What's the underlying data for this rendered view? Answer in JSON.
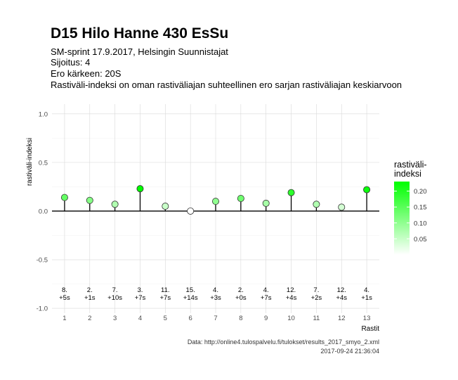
{
  "chart_data": {
    "type": "scatter",
    "title": "D15 Hilo Hanne 430 EsSu",
    "subtitle_lines": [
      "SM-sprint 17.9.2017, Helsingin Suunnistajat",
      "Sijoitus: 4",
      "Ero kärkeen: 20S",
      "Rastiväli-indeksi on oman rastiväliajan suhteellinen ero sarjan rastiväliajan keskiarvoon"
    ],
    "xlabel": "Rastit",
    "ylabel": "rastiväli-indeksi",
    "xlim": [
      0.5,
      13.5
    ],
    "ylim": [
      -1.05,
      1.1
    ],
    "x_ticks": [
      1,
      2,
      3,
      4,
      5,
      6,
      7,
      8,
      9,
      10,
      11,
      12,
      13
    ],
    "y_ticks": [
      -1.0,
      -0.5,
      0.0,
      0.5,
      1.0
    ],
    "y_tick_labels": [
      "-1.0",
      "-0.5",
      "0.0",
      "0.5",
      "1.0"
    ],
    "grid": true,
    "baseline": 0,
    "points": [
      {
        "x": 1,
        "y": 0.14,
        "rank": "8.",
        "diff": "+5s"
      },
      {
        "x": 2,
        "y": 0.11,
        "rank": "2.",
        "diff": "+1s"
      },
      {
        "x": 3,
        "y": 0.07,
        "rank": "7.",
        "diff": "+10s"
      },
      {
        "x": 4,
        "y": 0.23,
        "rank": "3.",
        "diff": "+7s"
      },
      {
        "x": 5,
        "y": 0.05,
        "rank": "11.",
        "diff": "+7s"
      },
      {
        "x": 6,
        "y": 0.0,
        "rank": "15.",
        "diff": "+14s"
      },
      {
        "x": 7,
        "y": 0.1,
        "rank": "4.",
        "diff": "+3s"
      },
      {
        "x": 8,
        "y": 0.13,
        "rank": "2.",
        "diff": "+0s"
      },
      {
        "x": 9,
        "y": 0.08,
        "rank": "4.",
        "diff": "+7s"
      },
      {
        "x": 10,
        "y": 0.19,
        "rank": "12.",
        "diff": "+4s"
      },
      {
        "x": 11,
        "y": 0.07,
        "rank": "7.",
        "diff": "+2s"
      },
      {
        "x": 12,
        "y": 0.04,
        "rank": "12.",
        "diff": "+4s"
      },
      {
        "x": 13,
        "y": 0.22,
        "rank": "4.",
        "diff": "+1s"
      }
    ],
    "legend": {
      "title_lines": [
        "rastiväli-",
        "indeksi"
      ],
      "placement": "right",
      "ticks": [
        0.05,
        0.1,
        0.15,
        0.2
      ],
      "tick_labels": [
        "0.05",
        "0.10",
        "0.15",
        "0.20"
      ],
      "range": [
        0.0,
        0.23
      ],
      "color_low": "#ffffff",
      "color_high": "#00ff00"
    },
    "caption_lines": [
      "Data: http://online4.tulospalvelu.fi/tulokset/results_2017_smyo_2.xml",
      "2017-09-24 21:36:04"
    ]
  }
}
